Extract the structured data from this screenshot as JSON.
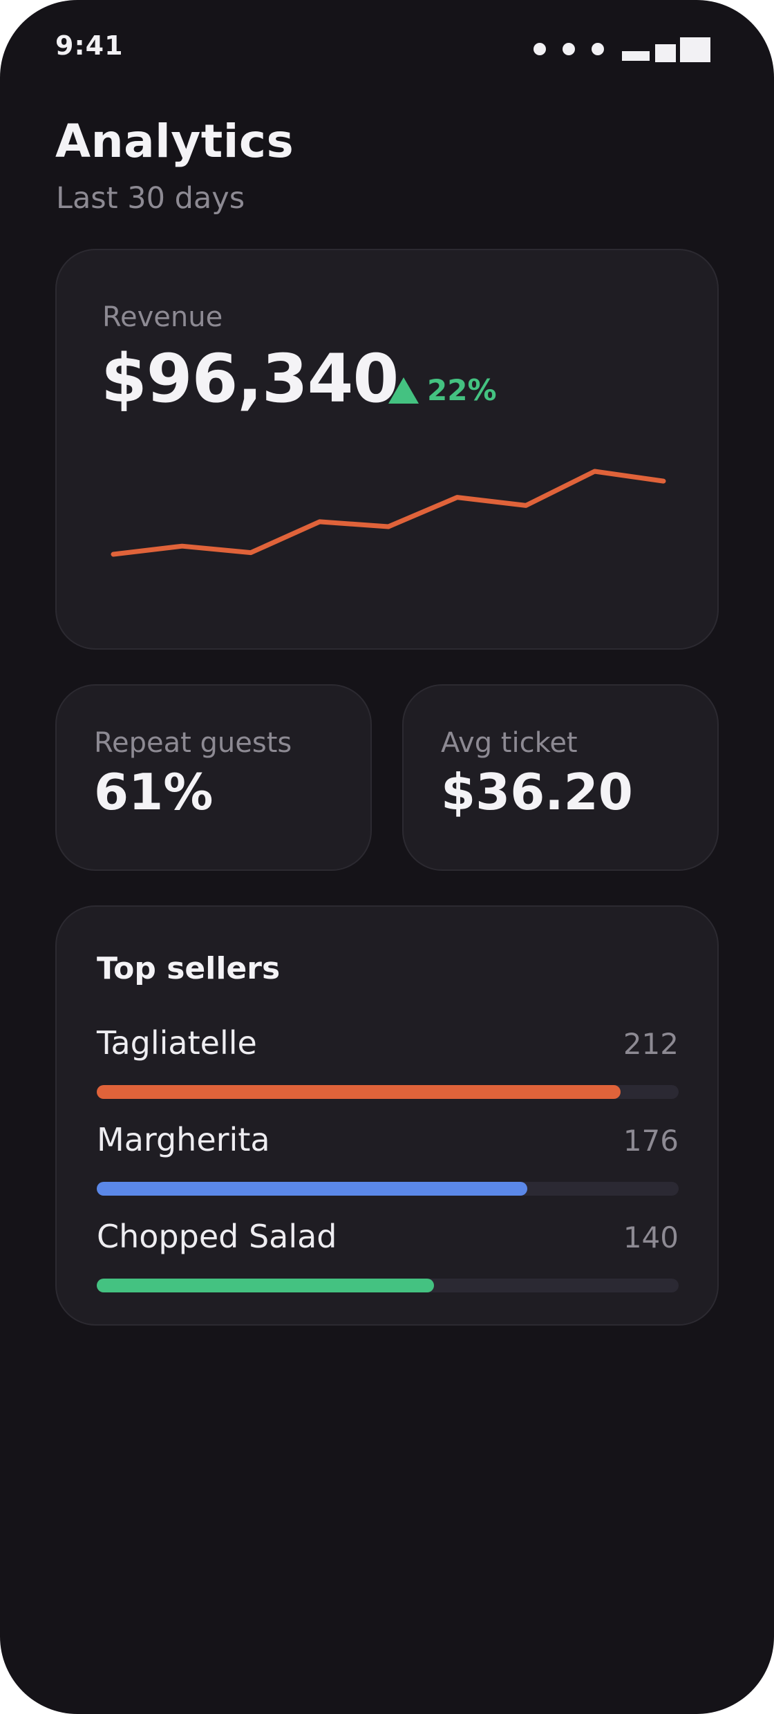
{
  "status": {
    "time": "9:41"
  },
  "header": {
    "title": "Analytics",
    "subtitle": "Last 30 days"
  },
  "revenue": {
    "label": "Revenue",
    "value": "$96,340",
    "change": "22%",
    "trend_icon": "triangle-up-icon",
    "trend_color": "#44c281",
    "line_color": "#e0633a",
    "sparkline": [
      12,
      17,
      13,
      32,
      29,
      47,
      42,
      63,
      57
    ]
  },
  "stats": [
    {
      "label": "Repeat guests",
      "value": "61%"
    },
    {
      "label": "Avg ticket",
      "value": "$36.20"
    }
  ],
  "top_sellers": {
    "title": "Top sellers",
    "items": [
      {
        "name": "Tagliatelle",
        "count": "212",
        "fraction": 0.9,
        "color": "#e0633a"
      },
      {
        "name": "Margherita",
        "count": "176",
        "fraction": 0.74,
        "color": "#5b88e8"
      },
      {
        "name": "Chopped Salad",
        "count": "140",
        "fraction": 0.58,
        "color": "#44c281"
      }
    ]
  }
}
